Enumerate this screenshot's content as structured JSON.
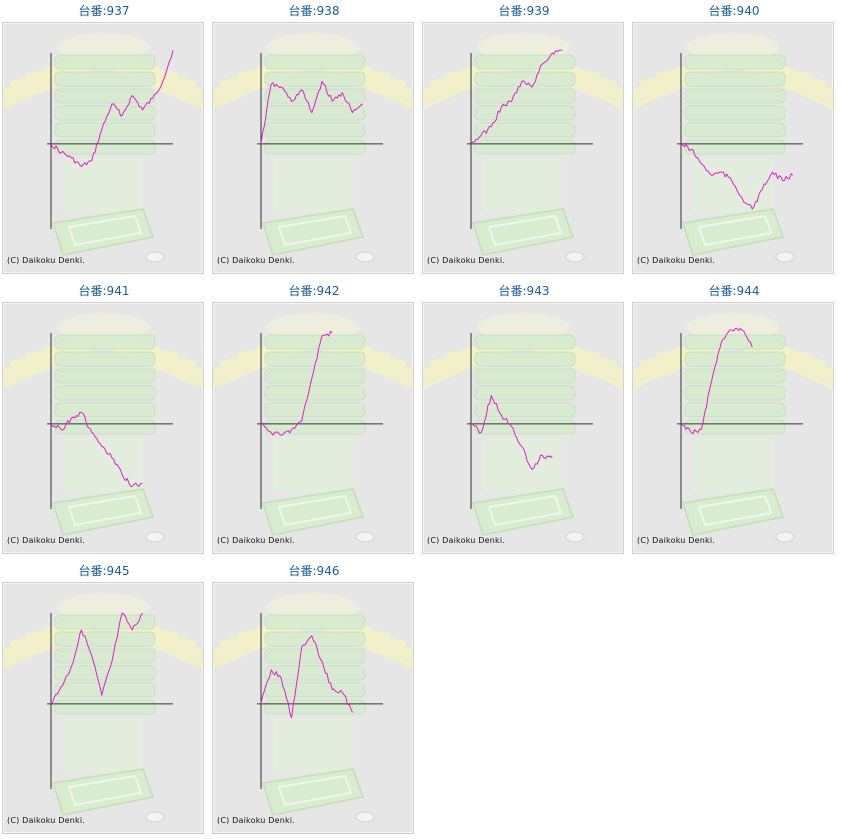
{
  "copyright": "(C) Daikoku Denki.",
  "colors": {
    "line": "#e020c8",
    "axis": "#333333",
    "title": "#1a5e96",
    "background": "#e6e6e6"
  },
  "chart_data": [
    {
      "type": "line",
      "title": "台番:937",
      "values": [
        0,
        -0.6,
        -1.0,
        -1.6,
        -1.2,
        1.0,
        2.8,
        2.0,
        3.4,
        2.4,
        3.2,
        4.4,
        6.6
      ],
      "xlim": [
        0,
        12
      ],
      "ylim": [
        -6,
        6.4
      ],
      "grid": false
    },
    {
      "type": "line",
      "title": "台番:938",
      "values": [
        0,
        4.2,
        4.0,
        3.0,
        3.8,
        2.2,
        4.4,
        3.0,
        3.6,
        2.2,
        2.8
      ],
      "xlim": [
        0,
        12
      ],
      "ylim": [
        -6,
        6.4
      ],
      "grid": false
    },
    {
      "type": "line",
      "title": "台番:939",
      "values": [
        0,
        0.6,
        1.2,
        2.6,
        3.0,
        4.4,
        4.0,
        5.6,
        6.4,
        6.6
      ],
      "xlim": [
        0,
        12
      ],
      "ylim": [
        -6,
        6.4
      ],
      "grid": false
    },
    {
      "type": "line",
      "title": "台番:940",
      "values": [
        0,
        -0.4,
        -1.4,
        -2.2,
        -2.0,
        -2.6,
        -3.8,
        -4.6,
        -3.2,
        -2.0,
        -2.6,
        -2.2
      ],
      "xlim": [
        0,
        12
      ],
      "ylim": [
        -6,
        6.4
      ],
      "grid": false
    },
    {
      "type": "line",
      "title": "台番:941",
      "values": [
        0,
        -0.4,
        0.4,
        0.8,
        -0.6,
        -1.6,
        -2.4,
        -3.6,
        -4.4,
        -4.2
      ],
      "xlim": [
        0,
        12
      ],
      "ylim": [
        -6,
        6.4
      ],
      "grid": false
    },
    {
      "type": "line",
      "title": "台番:942",
      "values": [
        0,
        -0.6,
        -0.8,
        -0.4,
        0.2,
        3.2,
        6.2,
        6.4
      ],
      "xlim": [
        0,
        12
      ],
      "ylim": [
        -6,
        6.4
      ],
      "grid": false
    },
    {
      "type": "line",
      "title": "台番:943",
      "values": [
        0,
        -0.6,
        2.0,
        0.6,
        -0.2,
        -1.6,
        -3.2,
        -2.2,
        -2.4
      ],
      "xlim": [
        0,
        12
      ],
      "ylim": [
        -6,
        6.4
      ],
      "grid": false
    },
    {
      "type": "line",
      "title": "台番:944",
      "values": [
        0,
        -0.6,
        -0.4,
        3.0,
        5.8,
        6.6,
        6.6,
        5.4
      ],
      "xlim": [
        0,
        12
      ],
      "ylim": [
        -6,
        6.4
      ],
      "grid": false
    },
    {
      "type": "line",
      "title": "台番:945",
      "values": [
        0,
        1.2,
        2.6,
        5.2,
        3.4,
        0.6,
        3.0,
        6.4,
        5.2,
        6.4
      ],
      "xlim": [
        0,
        12
      ],
      "ylim": [
        -6,
        6.4
      ],
      "grid": false
    },
    {
      "type": "line",
      "title": "台番:946",
      "values": [
        0,
        2.4,
        1.8,
        -1.0,
        4.0,
        4.8,
        3.0,
        1.0,
        0.8,
        -0.6
      ],
      "xlim": [
        0,
        12
      ],
      "ylim": [
        -6,
        6.4
      ],
      "grid": false
    }
  ]
}
